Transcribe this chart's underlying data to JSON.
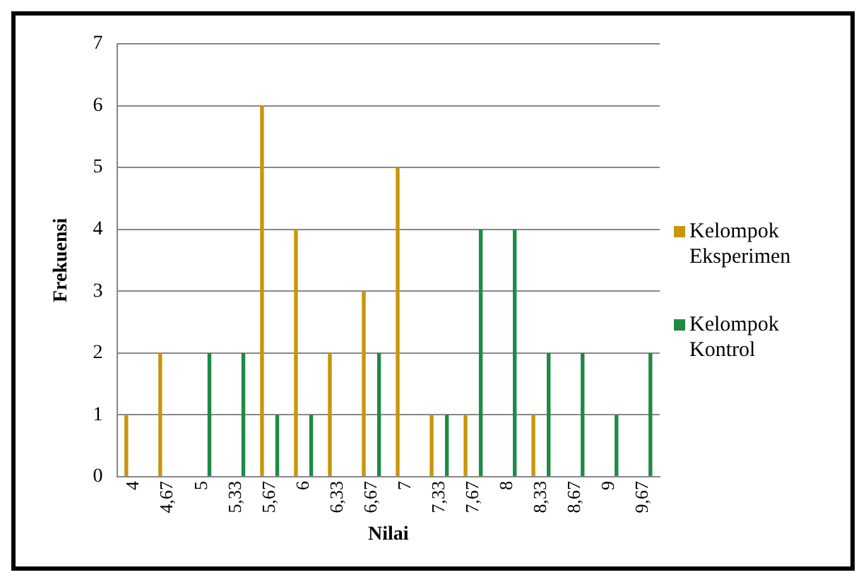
{
  "chart_data": {
    "type": "bar",
    "xlabel": "Nilai",
    "ylabel": "Frekuensi",
    "categories": [
      "4",
      "4,67",
      "5",
      "5,33",
      "5,67",
      "6",
      "6,33",
      "6,67",
      "7",
      "7,33",
      "7,67",
      "8",
      "8,33",
      "8,67",
      "9",
      "9,67"
    ],
    "series": [
      {
        "name": "Kelompok Eksperimen",
        "color": "#c8960c",
        "values": [
          1,
          2,
          0,
          0,
          6,
          4,
          2,
          3,
          5,
          1,
          1,
          0,
          1,
          0,
          0,
          0
        ]
      },
      {
        "name": "Kelompok Kontrol",
        "color": "#1e8a46",
        "values": [
          0,
          0,
          2,
          2,
          1,
          1,
          0,
          2,
          0,
          1,
          4,
          4,
          2,
          2,
          1,
          2
        ]
      }
    ],
    "ylim": [
      0,
      7
    ],
    "yticks": [
      0,
      1,
      2,
      3,
      4,
      5,
      6,
      7
    ],
    "grid": "y",
    "legend": "right"
  }
}
